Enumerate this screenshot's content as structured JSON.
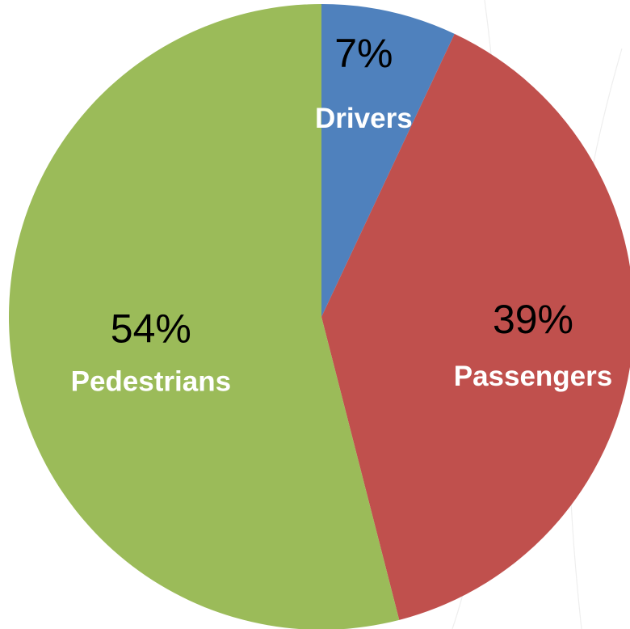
{
  "chart_data": {
    "type": "pie",
    "title": "",
    "start_angle_deg": 0,
    "direction": "clockwise",
    "slices": [
      {
        "name": "Drivers",
        "value": 7,
        "value_label": "7%",
        "color": "#4f81bd"
      },
      {
        "name": "Passengers",
        "value": 39,
        "value_label": "39%",
        "color": "#c0504d"
      },
      {
        "name": "Pedestrians",
        "value": 54,
        "value_label": "54%",
        "color": "#9bbb59"
      }
    ],
    "legend": "none",
    "data_labels": "inside"
  }
}
